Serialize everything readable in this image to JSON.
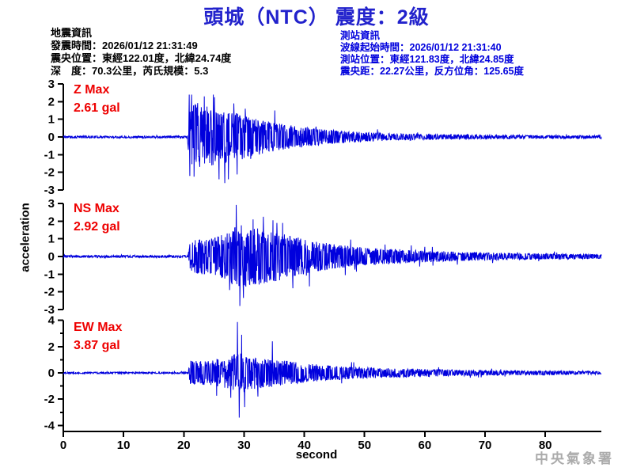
{
  "title": "頭城（NTC） 震度：2級",
  "earthquake_info": {
    "heading": "地震資訊",
    "lines": [
      "發震時間：2026/01/12 21:31:49",
      "震央位置：東經122.01度，北緯24.74度",
      "深　度：70.3公里，芮氏規模：5.3"
    ]
  },
  "station_info": {
    "heading": "測站資訊",
    "lines": [
      "波線起始時間：2026/01/12 21:31:40",
      "測站位置：東經121.83度，北緯24.85度",
      "震央距：22.27公里，反方位角：125.65度"
    ]
  },
  "watermark": "中央氣象署",
  "colors": {
    "title": "#2222cc",
    "quake_text": "#000000",
    "station_text": "#0000dd",
    "max_label": "#ee0000",
    "trace": "#0000dd",
    "axis": "#000000",
    "watermark": "#ababab"
  },
  "chart_data": {
    "type": "line",
    "xlabel": "second",
    "ylabel": "acceleration",
    "x_range": [
      0,
      89.3
    ],
    "x_ticks": [
      0,
      10,
      20,
      30,
      40,
      50,
      60,
      70,
      80
    ],
    "traces": [
      {
        "component": "Z",
        "label": "Z Max",
        "max_label": "2.61 gal",
        "max_gal": 2.61,
        "ylim": [
          -3,
          3
        ],
        "tick_step": 1,
        "label_step": 1,
        "seed": 11,
        "p_onset_s": 20.7,
        "peak_time_s": 26.8,
        "envelope": [
          [
            0,
            0.06
          ],
          [
            20.6,
            0.06
          ],
          [
            20.9,
            1.7
          ],
          [
            22,
            2.0
          ],
          [
            24,
            1.7
          ],
          [
            26,
            1.5
          ],
          [
            28,
            1.35
          ],
          [
            30,
            1.25
          ],
          [
            33,
            0.95
          ],
          [
            36,
            0.75
          ],
          [
            40,
            0.55
          ],
          [
            44,
            0.42
          ],
          [
            48,
            0.3
          ],
          [
            55,
            0.2
          ],
          [
            62,
            0.15
          ],
          [
            70,
            0.11
          ],
          [
            80,
            0.09
          ],
          [
            89.3,
            0.08
          ]
        ],
        "spikes": [
          [
            21.3,
            2.4
          ],
          [
            21.7,
            -2.25
          ],
          [
            23.4,
            2.3
          ],
          [
            25.1,
            2.25
          ],
          [
            26.8,
            -2.61
          ],
          [
            27.4,
            -2.4
          ],
          [
            28.3,
            1.9
          ],
          [
            30.2,
            1.6
          ],
          [
            35.1,
            1.5
          ]
        ]
      },
      {
        "component": "NS",
        "label": "NS Max",
        "max_label": "2.92 gal",
        "max_gal": 2.92,
        "ylim": [
          -3,
          3
        ],
        "tick_step": 1,
        "label_step": 1,
        "seed": 23,
        "p_onset_s": 20.7,
        "peak_time_s": 28.7,
        "envelope": [
          [
            0,
            0.06
          ],
          [
            20.7,
            0.06
          ],
          [
            21.1,
            0.95
          ],
          [
            23,
            1.0
          ],
          [
            25,
            1.1
          ],
          [
            27,
            1.3
          ],
          [
            28.5,
            1.75
          ],
          [
            30,
            1.8
          ],
          [
            32,
            1.65
          ],
          [
            34,
            1.5
          ],
          [
            36,
            1.35
          ],
          [
            38,
            1.15
          ],
          [
            40,
            1.0
          ],
          [
            43,
            0.8
          ],
          [
            46,
            0.65
          ],
          [
            50,
            0.5
          ],
          [
            55,
            0.4
          ],
          [
            60,
            0.33
          ],
          [
            65,
            0.27
          ],
          [
            70,
            0.22
          ],
          [
            75,
            0.19
          ],
          [
            80,
            0.16
          ],
          [
            89.3,
            0.13
          ]
        ],
        "spikes": [
          [
            27.6,
            -1.9
          ],
          [
            28.7,
            2.92
          ],
          [
            29.3,
            -2.8
          ],
          [
            29.9,
            -2.35
          ],
          [
            31.5,
            2.1
          ],
          [
            33.2,
            2.25
          ],
          [
            34.8,
            2.05
          ],
          [
            36.4,
            1.9
          ],
          [
            38.1,
            -1.8
          ]
        ]
      },
      {
        "component": "EW",
        "label": "EW Max",
        "max_label": "3.87 gal",
        "max_gal": 3.87,
        "ylim": [
          -4,
          4
        ],
        "tick_step": 1,
        "label_step": 2,
        "seed": 37,
        "p_onset_s": 20.7,
        "peak_time_s": 28.9,
        "envelope": [
          [
            0,
            0.06
          ],
          [
            20.7,
            0.06
          ],
          [
            21.1,
            0.9
          ],
          [
            23,
            0.9
          ],
          [
            25,
            1.0
          ],
          [
            27,
            1.1
          ],
          [
            28.5,
            1.45
          ],
          [
            30,
            1.5
          ],
          [
            32,
            1.25
          ],
          [
            34,
            1.1
          ],
          [
            36,
            1.0
          ],
          [
            38,
            0.85
          ],
          [
            40,
            0.75
          ],
          [
            43,
            0.6
          ],
          [
            46,
            0.5
          ],
          [
            50,
            0.42
          ],
          [
            55,
            0.35
          ],
          [
            60,
            0.3
          ],
          [
            65,
            0.25
          ],
          [
            70,
            0.2
          ],
          [
            75,
            0.17
          ],
          [
            80,
            0.15
          ],
          [
            89.3,
            0.12
          ]
        ],
        "spikes": [
          [
            27.8,
            -1.9
          ],
          [
            28.9,
            3.87
          ],
          [
            29.2,
            -3.4
          ],
          [
            29.6,
            2.9
          ],
          [
            30.1,
            -2.6
          ],
          [
            32.3,
            -1.8
          ],
          [
            34.7,
            2.4
          ]
        ]
      }
    ]
  }
}
